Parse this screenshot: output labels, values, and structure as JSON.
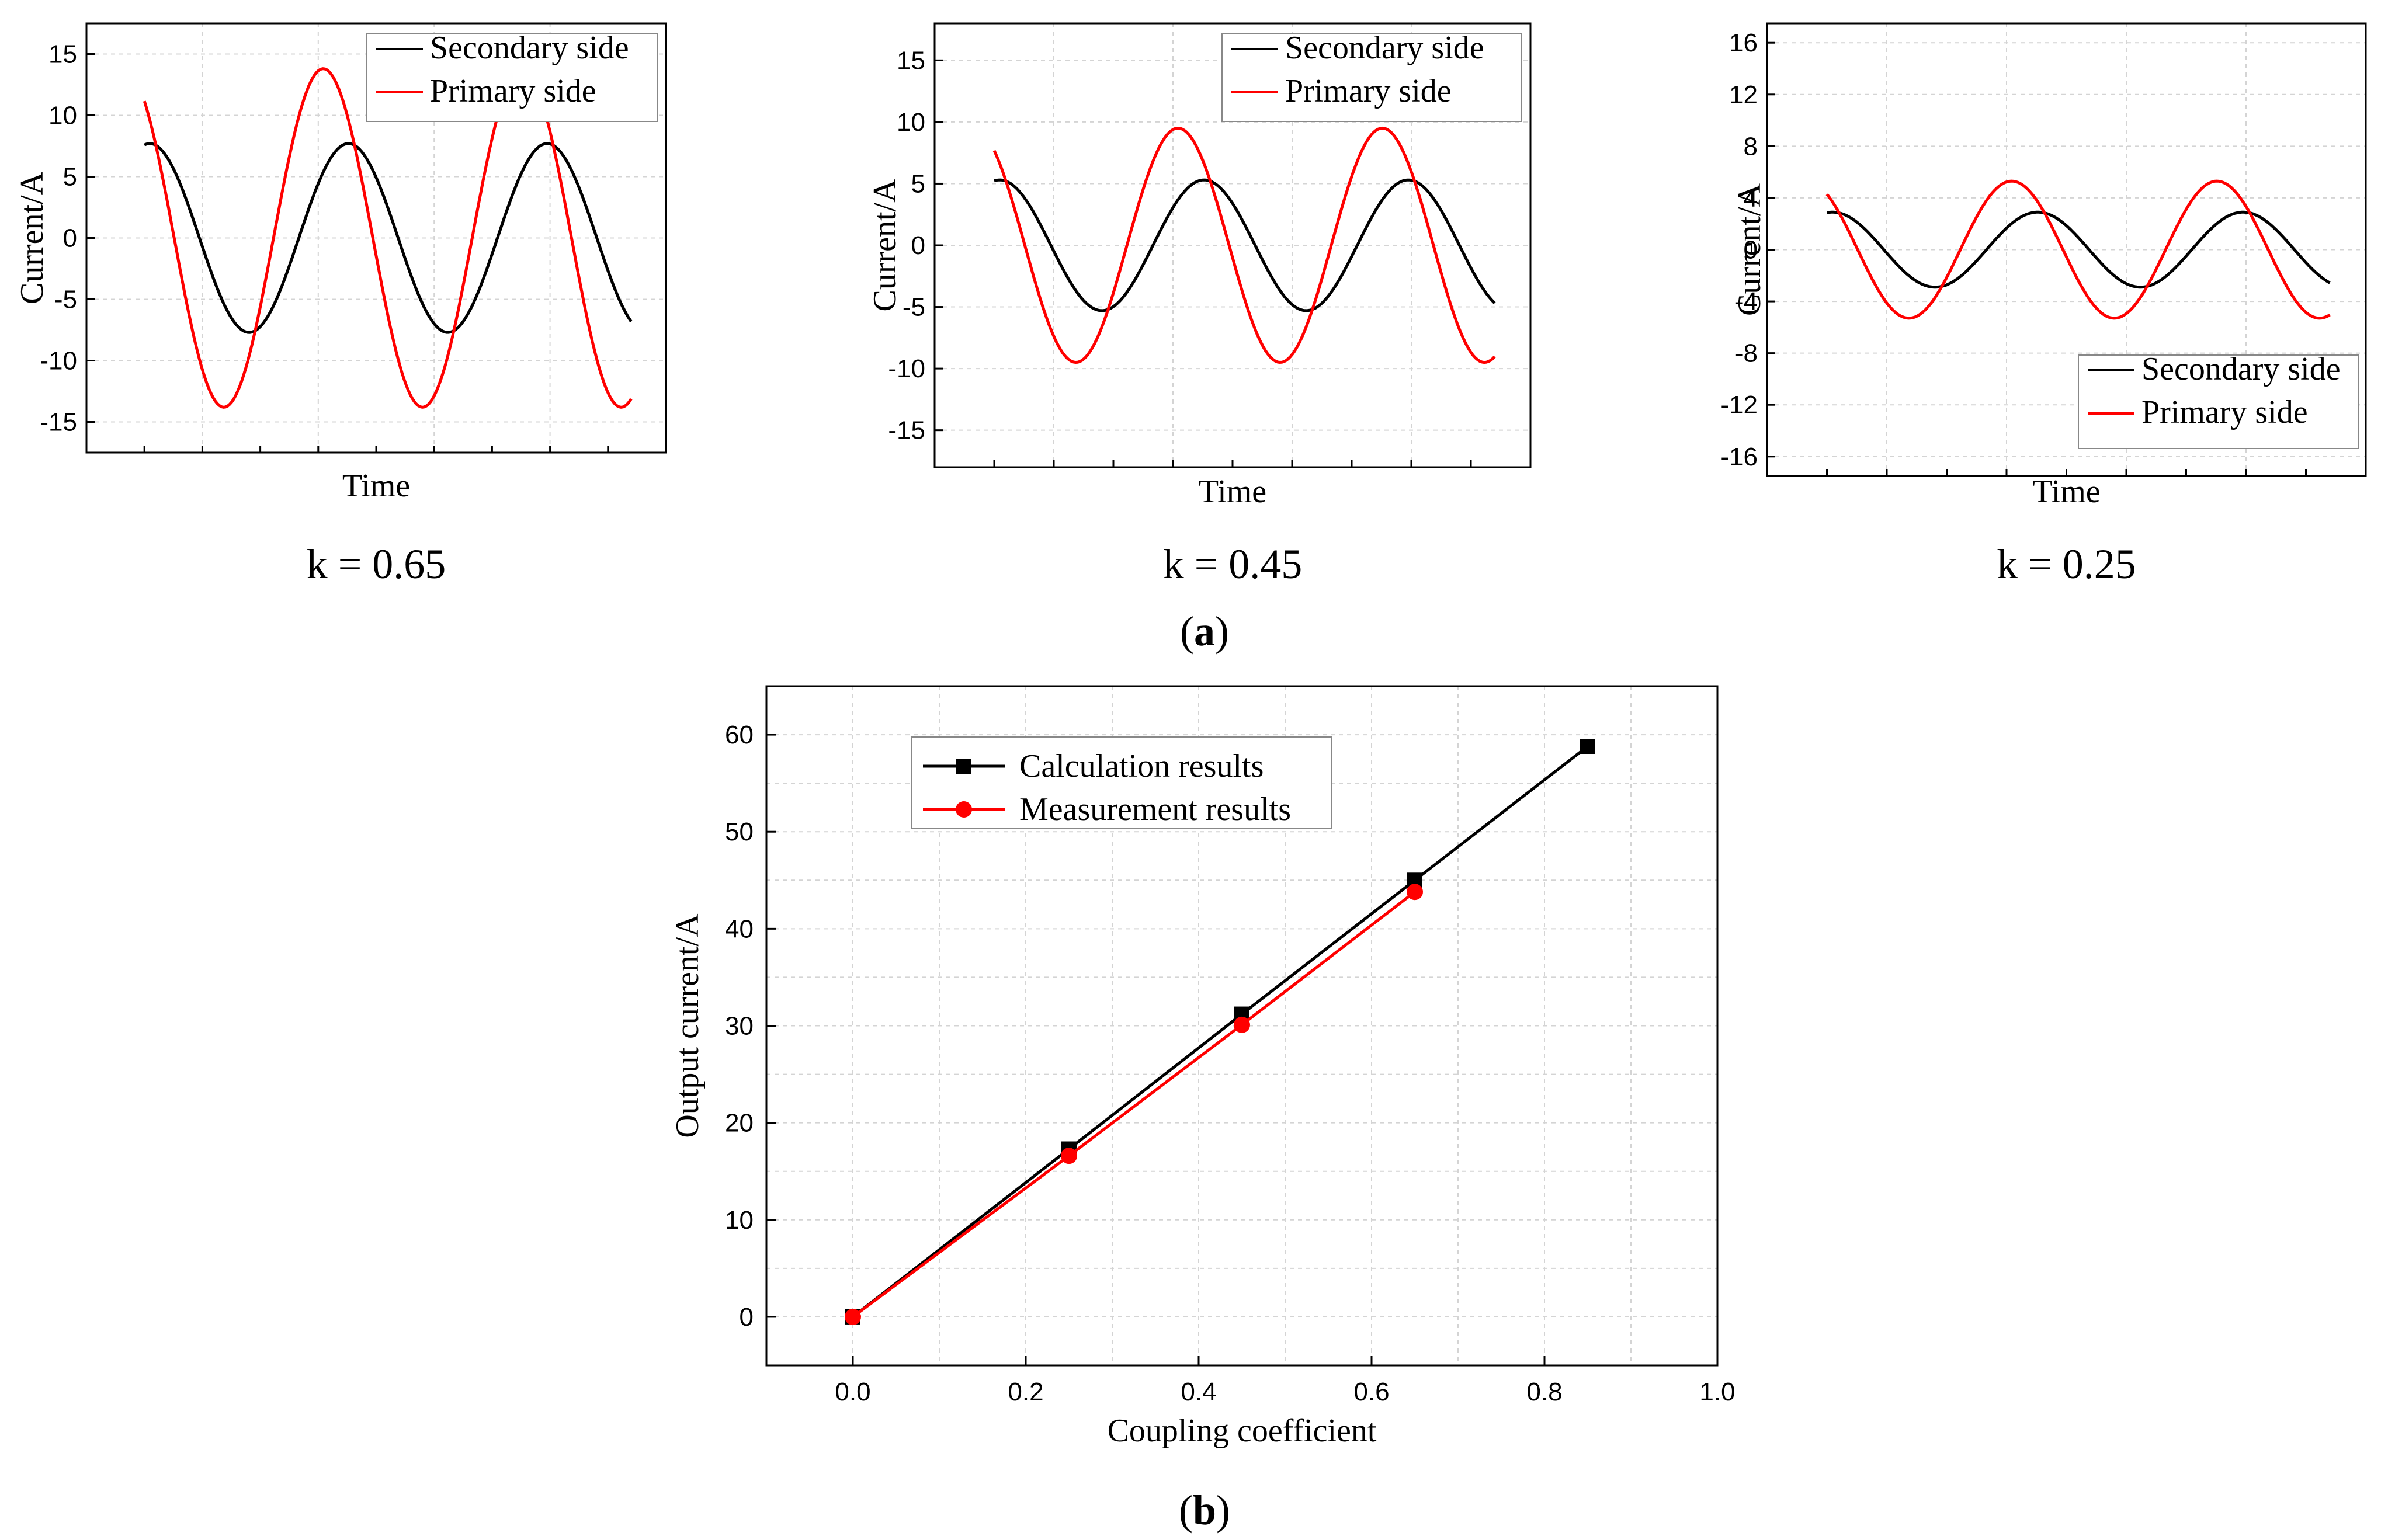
{
  "chart_data": [
    {
      "type": "line",
      "panel": "a",
      "subtitle": "k = 0.65",
      "xlabel": "Time",
      "ylabel": "Current/A",
      "ylim": [
        -17.5,
        17.5
      ],
      "yticks": [
        -15,
        -10,
        -5,
        0,
        5,
        10,
        15
      ],
      "ytick_labels": [
        "-15",
        "-10",
        "-5",
        "0",
        "5",
        "10",
        "15"
      ],
      "legend_position": "top-right",
      "series": [
        {
          "name": "Secondary side",
          "color": "#000000",
          "amplitude": 7.7,
          "cycles": 2.45,
          "phase": 1.4
        },
        {
          "name": "Primary side",
          "color": "#ff0000",
          "amplitude": 13.8,
          "cycles": 2.45,
          "phase": 2.2
        }
      ]
    },
    {
      "type": "line",
      "panel": "a",
      "subtitle": "k = 0.45",
      "xlabel": "Time",
      "ylabel": "Current/A",
      "ylim": [
        -18,
        18
      ],
      "yticks": [
        -15,
        -10,
        -5,
        0,
        5,
        10,
        15
      ],
      "ytick_labels": [
        "-15",
        "-10",
        "-5",
        "0",
        "5",
        "10",
        "15"
      ],
      "legend_position": "top-right",
      "series": [
        {
          "name": "Secondary side",
          "color": "#000000",
          "amplitude": 5.3,
          "cycles": 2.45,
          "phase": 1.4
        },
        {
          "name": "Primary side",
          "color": "#ff0000",
          "amplitude": 9.5,
          "cycles": 2.45,
          "phase": 2.2
        }
      ]
    },
    {
      "type": "line",
      "panel": "a",
      "subtitle": "k = 0.25",
      "xlabel": "Time",
      "ylabel": "Current/A",
      "ylim": [
        -17.5,
        17.5
      ],
      "yticks": [
        -16,
        -12,
        -8,
        -4,
        0,
        4,
        8,
        12,
        16
      ],
      "ytick_labels": [
        "-16",
        "-12",
        "-8",
        "-4",
        "0",
        "4",
        "8",
        "12",
        "16"
      ],
      "legend_position": "bottom-right",
      "series": [
        {
          "name": "Secondary side",
          "color": "#000000",
          "amplitude": 2.9,
          "cycles": 2.45,
          "phase": 1.4
        },
        {
          "name": "Primary side",
          "color": "#ff0000",
          "amplitude": 5.3,
          "cycles": 2.45,
          "phase": 2.2
        }
      ]
    },
    {
      "type": "line",
      "panel": "b",
      "xlabel": "Coupling coefficient",
      "ylabel": "Output current/A",
      "xlim": [
        -0.1,
        1.0
      ],
      "ylim": [
        -5,
        65
      ],
      "xticks": [
        0.0,
        0.2,
        0.4,
        0.6,
        0.8,
        1.0
      ],
      "xtick_labels": [
        "0.0",
        "0.2",
        "0.4",
        "0.6",
        "0.8",
        "1.0"
      ],
      "yticks": [
        0,
        10,
        20,
        30,
        40,
        50,
        60
      ],
      "ytick_labels": [
        "0",
        "10",
        "20",
        "30",
        "40",
        "50",
        "60"
      ],
      "legend_position": "top-left",
      "series": [
        {
          "name": "Calculation results",
          "color": "#000000",
          "marker": "square",
          "x": [
            0,
            0.25,
            0.45,
            0.65,
            0.85
          ],
          "y": [
            0,
            17.3,
            31.2,
            45.0,
            58.8
          ]
        },
        {
          "name": "Measurement results",
          "color": "#ff0000",
          "marker": "circle",
          "x": [
            0,
            0.25,
            0.45,
            0.65
          ],
          "y": [
            0,
            16.6,
            30.1,
            43.8
          ]
        }
      ]
    }
  ],
  "panel_labels": {
    "a": "a",
    "b": "b"
  }
}
